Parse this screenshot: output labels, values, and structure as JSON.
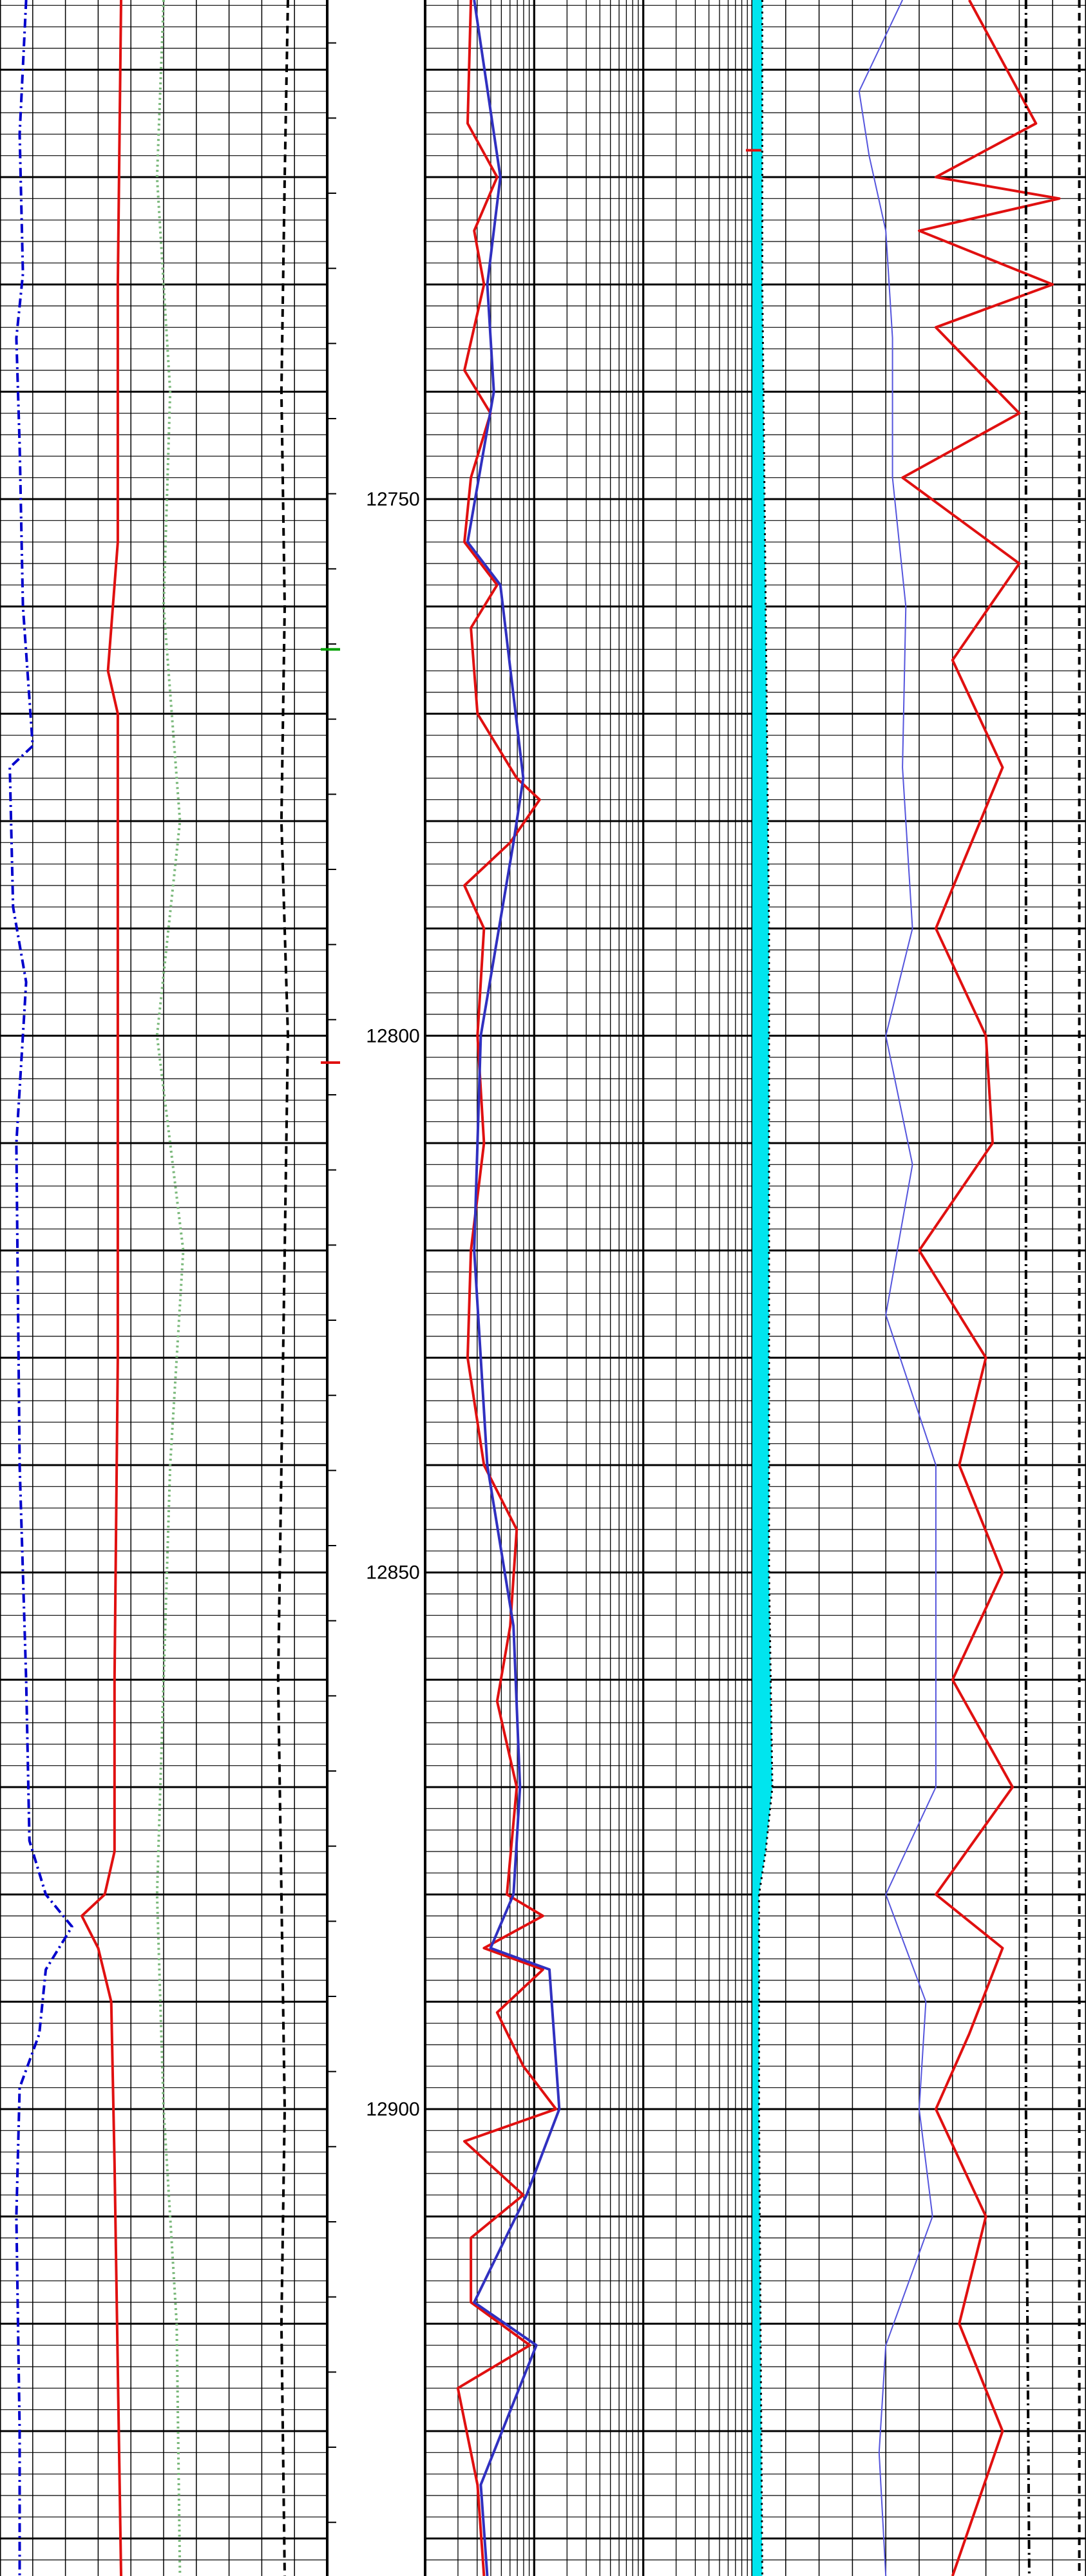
{
  "chart_data": {
    "type": "line",
    "title": "",
    "depth_axis": {
      "label": "",
      "range": [
        12703.5,
        12943.5
      ],
      "major_ticks": [
        12750,
        12800,
        12850,
        12900
      ],
      "tick_labels": [
        "12750",
        "12800",
        "12850",
        "12900"
      ],
      "major_line_interval": 10,
      "minor_line_interval": 2,
      "grid": true
    },
    "tracks": [
      {
        "name": "track-1-linear",
        "scale": "linear",
        "series": [
          {
            "style": "dash-dot",
            "color": "#0000cc",
            "points": [
              [
                12703.5,
                0.08
              ],
              [
                12716,
                0.06
              ],
              [
                12729,
                0.07
              ],
              [
                12735,
                0.05
              ],
              [
                12745,
                0.06
              ],
              [
                12760,
                0.07
              ],
              [
                12773,
                0.1
              ],
              [
                12775,
                0.03
              ],
              [
                12788,
                0.04
              ],
              [
                12795,
                0.08
              ],
              [
                12810,
                0.05
              ],
              [
                12840,
                0.06
              ],
              [
                12860,
                0.08
              ],
              [
                12875,
                0.09
              ],
              [
                12880,
                0.14
              ],
              [
                12883,
                0.22
              ],
              [
                12887,
                0.14
              ],
              [
                12893,
                0.12
              ],
              [
                12898,
                0.06
              ],
              [
                12910,
                0.05
              ],
              [
                12930,
                0.06
              ],
              [
                12943.5,
                0.06
              ]
            ]
          },
          {
            "style": "solid",
            "color": "#e01010",
            "points": [
              [
                12703.5,
                0.37
              ],
              [
                12730,
                0.36
              ],
              [
                12754,
                0.36
              ],
              [
                12766,
                0.33
              ],
              [
                12770,
                0.36
              ],
              [
                12800,
                0.36
              ],
              [
                12830,
                0.36
              ],
              [
                12860,
                0.35
              ],
              [
                12876,
                0.35
              ],
              [
                12880,
                0.32
              ],
              [
                12882,
                0.25
              ],
              [
                12885,
                0.3
              ],
              [
                12890,
                0.34
              ],
              [
                12905,
                0.35
              ],
              [
                12943.5,
                0.37
              ]
            ]
          },
          {
            "style": "dotted",
            "color": "#7ab87a",
            "points": [
              [
                12703.5,
                0.5
              ],
              [
                12720,
                0.48
              ],
              [
                12740,
                0.52
              ],
              [
                12760,
                0.5
              ],
              [
                12780,
                0.55
              ],
              [
                12800,
                0.48
              ],
              [
                12820,
                0.56
              ],
              [
                12840,
                0.52
              ],
              [
                12860,
                0.5
              ],
              [
                12880,
                0.48
              ],
              [
                12900,
                0.5
              ],
              [
                12920,
                0.54
              ],
              [
                12943.5,
                0.55
              ]
            ]
          },
          {
            "style": "dashed",
            "color": "#000000",
            "points": [
              [
                12703.5,
                0.88
              ],
              [
                12720,
                0.87
              ],
              [
                12740,
                0.86
              ],
              [
                12760,
                0.87
              ],
              [
                12780,
                0.86
              ],
              [
                12800,
                0.88
              ],
              [
                12820,
                0.87
              ],
              [
                12840,
                0.86
              ],
              [
                12860,
                0.85
              ],
              [
                12880,
                0.86
              ],
              [
                12900,
                0.87
              ],
              [
                12920,
                0.86
              ],
              [
                12943.5,
                0.87
              ]
            ]
          }
        ]
      },
      {
        "name": "track-2-log",
        "scale": "log",
        "series": [
          {
            "style": "solid",
            "color": "#e01010",
            "points": [
              [
                12703.5,
                0.14
              ],
              [
                12715,
                0.13
              ],
              [
                12720,
                0.22
              ],
              [
                12725,
                0.15
              ],
              [
                12730,
                0.18
              ],
              [
                12738,
                0.12
              ],
              [
                12742,
                0.2
              ],
              [
                12748,
                0.14
              ],
              [
                12754,
                0.12
              ],
              [
                12758,
                0.22
              ],
              [
                12762,
                0.14
              ],
              [
                12770,
                0.16
              ],
              [
                12776,
                0.28
              ],
              [
                12778,
                0.35
              ],
              [
                12782,
                0.26
              ],
              [
                12786,
                0.12
              ],
              [
                12790,
                0.18
              ],
              [
                12800,
                0.16
              ],
              [
                12810,
                0.18
              ],
              [
                12820,
                0.14
              ],
              [
                12830,
                0.13
              ],
              [
                12840,
                0.18
              ],
              [
                12846,
                0.28
              ],
              [
                12855,
                0.26
              ],
              [
                12862,
                0.22
              ],
              [
                12870,
                0.28
              ],
              [
                12880,
                0.25
              ],
              [
                12882,
                0.36
              ],
              [
                12885,
                0.18
              ],
              [
                12887,
                0.36
              ],
              [
                12891,
                0.22
              ],
              [
                12896,
                0.3
              ],
              [
                12900,
                0.4
              ],
              [
                12903,
                0.12
              ],
              [
                12908,
                0.3
              ],
              [
                12912,
                0.14
              ],
              [
                12918,
                0.14
              ],
              [
                12922,
                0.32
              ],
              [
                12926,
                0.1
              ],
              [
                12935,
                0.16
              ],
              [
                12943.5,
                0.18
              ]
            ]
          },
          {
            "style": "solid",
            "color": "#3030c0",
            "points": [
              [
                12703.5,
                0.15
              ],
              [
                12720,
                0.23
              ],
              [
                12730,
                0.19
              ],
              [
                12740,
                0.21
              ],
              [
                12754,
                0.13
              ],
              [
                12758,
                0.23
              ],
              [
                12776,
                0.3
              ],
              [
                12782,
                0.27
              ],
              [
                12800,
                0.17
              ],
              [
                12820,
                0.15
              ],
              [
                12840,
                0.19
              ],
              [
                12855,
                0.27
              ],
              [
                12870,
                0.29
              ],
              [
                12880,
                0.27
              ],
              [
                12885,
                0.2
              ],
              [
                12887,
                0.38
              ],
              [
                12900,
                0.41
              ],
              [
                12908,
                0.31
              ],
              [
                12918,
                0.15
              ],
              [
                12922,
                0.34
              ],
              [
                12935,
                0.17
              ],
              [
                12943.5,
                0.19
              ]
            ]
          }
        ]
      },
      {
        "name": "track-3-linear",
        "scale": "linear",
        "series": [
          {
            "style": "solid-fill",
            "color": "#00e5ee",
            "points": [
              [
                12703.5,
                0.03
              ],
              [
                12730,
                0.03
              ],
              [
                12760,
                0.04
              ],
              [
                12790,
                0.05
              ],
              [
                12820,
                0.05
              ],
              [
                12850,
                0.05
              ],
              [
                12870,
                0.06
              ],
              [
                12876,
                0.04
              ],
              [
                12880,
                0.02
              ],
              [
                12900,
                0.02
              ],
              [
                12943.5,
                0.03
              ]
            ]
          },
          {
            "style": "thin-blue",
            "color": "#5555dd",
            "points": [
              [
                12703.5,
                0.45
              ],
              [
                12712,
                0.32
              ],
              [
                12718,
                0.35
              ],
              [
                12725,
                0.4
              ],
              [
                12735,
                0.42
              ],
              [
                12748,
                0.42
              ],
              [
                12760,
                0.46
              ],
              [
                12775,
                0.45
              ],
              [
                12790,
                0.48
              ],
              [
                12800,
                0.4
              ],
              [
                12812,
                0.48
              ],
              [
                12826,
                0.4
              ],
              [
                12840,
                0.55
              ],
              [
                12860,
                0.55
              ],
              [
                12870,
                0.55
              ],
              [
                12880,
                0.4
              ],
              [
                12890,
                0.52
              ],
              [
                12900,
                0.5
              ],
              [
                12910,
                0.54
              ],
              [
                12922,
                0.4
              ],
              [
                12932,
                0.38
              ],
              [
                12943.5,
                0.4
              ]
            ]
          },
          {
            "style": "solid",
            "color": "#e01010",
            "points": [
              [
                12703.5,
                0.65
              ],
              [
                12715,
                0.85
              ],
              [
                12720,
                0.55
              ],
              [
                12722,
                0.92
              ],
              [
                12725,
                0.5
              ],
              [
                12730,
                0.9
              ],
              [
                12734,
                0.55
              ],
              [
                12742,
                0.8
              ],
              [
                12748,
                0.45
              ],
              [
                12756,
                0.8
              ],
              [
                12765,
                0.6
              ],
              [
                12775,
                0.75
              ],
              [
                12790,
                0.55
              ],
              [
                12800,
                0.7
              ],
              [
                12810,
                0.72
              ],
              [
                12820,
                0.5
              ],
              [
                12830,
                0.7
              ],
              [
                12840,
                0.62
              ],
              [
                12850,
                0.75
              ],
              [
                12860,
                0.6
              ],
              [
                12870,
                0.78
              ],
              [
                12880,
                0.55
              ],
              [
                12885,
                0.75
              ],
              [
                12893,
                0.65
              ],
              [
                12900,
                0.55
              ],
              [
                12910,
                0.7
              ],
              [
                12920,
                0.62
              ],
              [
                12930,
                0.75
              ],
              [
                12943.5,
                0.6
              ]
            ]
          },
          {
            "style": "dash-dot",
            "color": "#000000",
            "points": [
              [
                12703.5,
                0.82
              ],
              [
                12800,
                0.82
              ],
              [
                12900,
                0.82
              ],
              [
                12943.5,
                0.83
              ]
            ]
          },
          {
            "style": "dashed",
            "color": "#000000",
            "points": [
              [
                12703.5,
                0.98
              ],
              [
                12800,
                0.98
              ],
              [
                12900,
                0.98
              ],
              [
                12943.5,
                0.98
              ]
            ]
          }
        ]
      }
    ],
    "depth_markers": [
      {
        "depth": 12717.5,
        "color": "#e01010",
        "track": "track-3-linear"
      },
      {
        "depth": 12764,
        "color": "#00a000",
        "track": "depth-track"
      },
      {
        "depth": 12802.5,
        "color": "#e01010",
        "track": "depth-track"
      }
    ]
  }
}
